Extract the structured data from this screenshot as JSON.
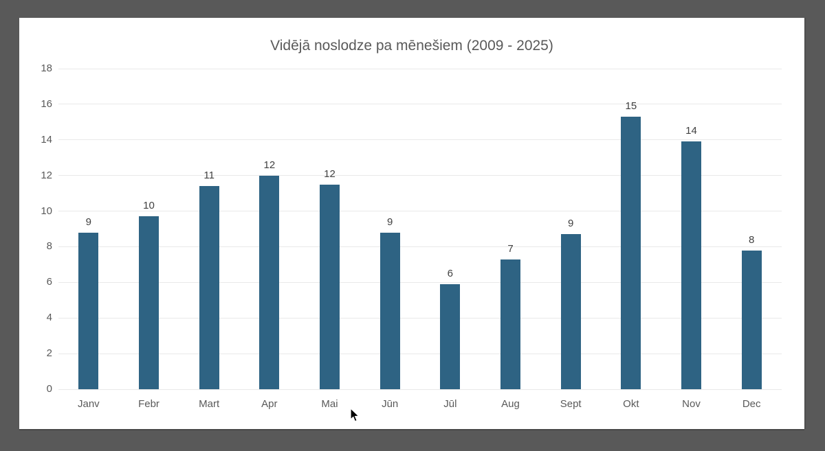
{
  "window": {
    "background_color": "#595959",
    "card_background_color": "#ffffff"
  },
  "chart_data": {
    "type": "bar",
    "title": "Vidējā noslodze pa mēnešiem (2009 - 2025)",
    "categories": [
      "Janv",
      "Febr",
      "Mart",
      "Apr",
      "Mai",
      "Jūn",
      "Jūl",
      "Aug",
      "Sept",
      "Okt",
      "Nov",
      "Dec"
    ],
    "values": [
      8.8,
      9.7,
      11.4,
      12.0,
      11.5,
      8.8,
      5.9,
      7.3,
      8.7,
      15.3,
      13.9,
      7.8
    ],
    "bar_labels": [
      "9",
      "10",
      "11",
      "12",
      "12",
      "9",
      "6",
      "7",
      "9",
      "15",
      "14",
      "8"
    ],
    "xlabel": "",
    "ylabel": "",
    "ylim": [
      0,
      18
    ],
    "yticks": [
      0,
      2,
      4,
      6,
      8,
      10,
      12,
      14,
      16,
      18
    ],
    "grid": true,
    "legend": "none",
    "bar_color": "#2e6383",
    "gridline_color": "#e9e9e9",
    "axis_label_color": "#595959",
    "value_label_color": "#404040",
    "title_color": "#595959"
  }
}
